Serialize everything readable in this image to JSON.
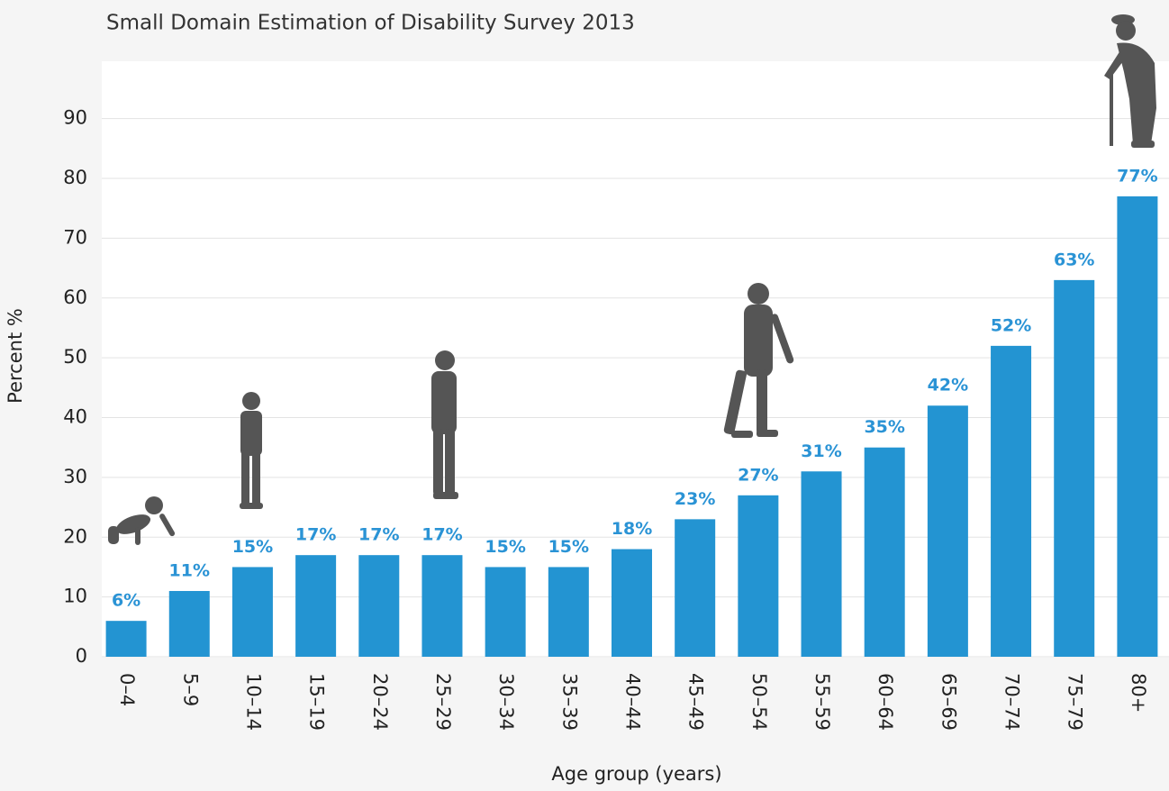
{
  "chart_data": {
    "type": "bar",
    "title": "Small Domain Estimation of Disability Survey 2013",
    "x_label": "Age group (years)",
    "y_label": "Percent %",
    "categories": [
      "0–4",
      "5–9",
      "10–14",
      "15–19",
      "20–24",
      "25–29",
      "30–34",
      "35–39",
      "40–44",
      "45–49",
      "50–54",
      "55–59",
      "60–64",
      "65–69",
      "70–74",
      "75–79",
      "80+"
    ],
    "values": [
      6,
      11,
      15,
      17,
      17,
      17,
      15,
      15,
      18,
      23,
      27,
      31,
      35,
      42,
      52,
      63,
      77
    ],
    "value_labels": [
      "6%",
      "11%",
      "15%",
      "17%",
      "17%",
      "17%",
      "15%",
      "15%",
      "18%",
      "23%",
      "27%",
      "31%",
      "35%",
      "42%",
      "52%",
      "63%",
      "77%"
    ],
    "color": "#2394d2",
    "ylim": [
      0,
      100
    ],
    "yticks": [
      0,
      10,
      20,
      30,
      40,
      50,
      60,
      70,
      80,
      90
    ],
    "grid": true
  }
}
